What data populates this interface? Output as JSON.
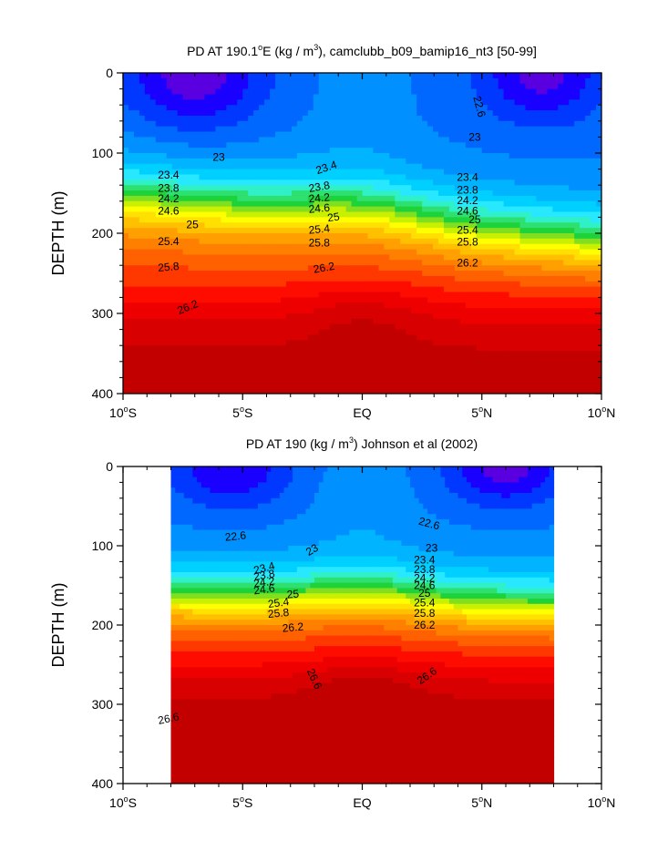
{
  "chart_data": [
    {
      "type": "contour",
      "title": "PD AT 190.1°E (kg / m³), camclubb_b09_bamip16_nt3 [50-99]",
      "title_parts": {
        "a": "PD AT 190.1",
        "deg": "o",
        "b": "E (kg / m",
        "sup": "3",
        "c": "), camclubb_b09_bamip16_nt3 [50-99]"
      },
      "xlabel": "",
      "ylabel": "DEPTH (m)",
      "xlim": [
        -10,
        10
      ],
      "ylim": [
        0,
        400
      ],
      "y_inverted": true,
      "data_xlim": [
        -10,
        10
      ],
      "x_ticks": [
        {
          "value": -10,
          "num": "10",
          "deg": "o",
          "hemi": "S"
        },
        {
          "value": -5,
          "num": "5",
          "deg": "o",
          "hemi": "S"
        },
        {
          "value": 0,
          "num": "EQ",
          "deg": "",
          "hemi": ""
        },
        {
          "value": 5,
          "num": "5",
          "deg": "o",
          "hemi": "N"
        },
        {
          "value": 10,
          "num": "10",
          "deg": "o",
          "hemi": "N"
        }
      ],
      "y_ticks": [
        "0",
        "100",
        "200",
        "300",
        "400"
      ],
      "fill_levels": [
        22.2,
        22.4,
        22.6,
        22.8,
        23.0,
        23.2,
        23.4,
        23.6,
        23.8,
        24.0,
        24.2,
        24.4,
        24.6,
        24.8,
        25.0,
        25.2,
        25.4,
        25.6,
        25.8,
        26.0,
        26.2,
        26.4,
        26.6
      ],
      "contour_labels": [
        {
          "text": "22.6",
          "x": 4.9,
          "y": 42,
          "rot": 75
        },
        {
          "text": "23",
          "x": -6.0,
          "y": 105,
          "rot": 0
        },
        {
          "text": "23",
          "x": 4.7,
          "y": 80,
          "rot": 0
        },
        {
          "text": "23.4",
          "x": -8.1,
          "y": 127,
          "rot": 0
        },
        {
          "text": "23.4",
          "x": -1.5,
          "y": 118,
          "rot": -18
        },
        {
          "text": "23.4",
          "x": 4.4,
          "y": 130,
          "rot": 0
        },
        {
          "text": "23.8",
          "x": -8.1,
          "y": 144,
          "rot": 0
        },
        {
          "text": "23.8",
          "x": -1.8,
          "y": 142,
          "rot": -10
        },
        {
          "text": "23.8",
          "x": 4.4,
          "y": 146,
          "rot": 0
        },
        {
          "text": "24.2",
          "x": -8.1,
          "y": 157,
          "rot": 0
        },
        {
          "text": "24.2",
          "x": -1.8,
          "y": 156,
          "rot": -5
        },
        {
          "text": "24.2",
          "x": 4.4,
          "y": 159,
          "rot": 0
        },
        {
          "text": "24.6",
          "x": -8.1,
          "y": 172,
          "rot": 0
        },
        {
          "text": "24.6",
          "x": -1.8,
          "y": 169,
          "rot": -5
        },
        {
          "text": "24.6",
          "x": 4.4,
          "y": 172,
          "rot": 0
        },
        {
          "text": "25",
          "x": -7.1,
          "y": 189,
          "rot": 0
        },
        {
          "text": "25",
          "x": -1.2,
          "y": 180,
          "rot": -8
        },
        {
          "text": "25",
          "x": 4.7,
          "y": 183,
          "rot": 0
        },
        {
          "text": "25.4",
          "x": -8.1,
          "y": 210,
          "rot": 0
        },
        {
          "text": "25.4",
          "x": -1.8,
          "y": 195,
          "rot": -5
        },
        {
          "text": "25.4",
          "x": 4.4,
          "y": 196,
          "rot": 0
        },
        {
          "text": "25.8",
          "x": -8.1,
          "y": 242,
          "rot": -5
        },
        {
          "text": "25.8",
          "x": -1.8,
          "y": 212,
          "rot": 0
        },
        {
          "text": "25.8",
          "x": 4.4,
          "y": 211,
          "rot": 0
        },
        {
          "text": "26.2",
          "x": -1.6,
          "y": 243,
          "rot": -10
        },
        {
          "text": "26.2",
          "x": 4.4,
          "y": 237,
          "rot": 0
        },
        {
          "text": "26.2",
          "x": -7.3,
          "y": 292,
          "rot": -22
        }
      ]
    },
    {
      "type": "contour",
      "title": "PD AT 190 (kg / m³) Johnson et al (2002)",
      "title_parts": {
        "a": "PD AT 190 (kg / m",
        "sup": "3",
        "c": ") Johnson et al (2002)"
      },
      "xlabel": "",
      "ylabel": "DEPTH (m)",
      "xlim": [
        -10,
        10
      ],
      "ylim": [
        0,
        400
      ],
      "y_inverted": true,
      "data_xlim": [
        -8,
        8
      ],
      "x_ticks": [
        {
          "value": -10,
          "num": "10",
          "deg": "o",
          "hemi": "S"
        },
        {
          "value": -5,
          "num": "5",
          "deg": "o",
          "hemi": "S"
        },
        {
          "value": 0,
          "num": "EQ",
          "deg": "",
          "hemi": ""
        },
        {
          "value": 5,
          "num": "5",
          "deg": "o",
          "hemi": "N"
        },
        {
          "value": 10,
          "num": "10",
          "deg": "o",
          "hemi": "N"
        }
      ],
      "y_ticks": [
        "0",
        "100",
        "200",
        "300",
        "400"
      ],
      "fill_levels": [
        22.2,
        22.4,
        22.6,
        22.8,
        23.0,
        23.2,
        23.4,
        23.6,
        23.8,
        24.0,
        24.2,
        24.4,
        24.6,
        24.8,
        25.0,
        25.2,
        25.4,
        25.6,
        25.8,
        26.0,
        26.2,
        26.4,
        26.6
      ],
      "contour_labels": [
        {
          "text": "22.6",
          "x": -5.3,
          "y": 88,
          "rot": -6
        },
        {
          "text": "22.6",
          "x": 2.8,
          "y": 72,
          "rot": 15
        },
        {
          "text": "23",
          "x": -2.1,
          "y": 105,
          "rot": -30
        },
        {
          "text": "23",
          "x": 2.9,
          "y": 103,
          "rot": 0
        },
        {
          "text": "23.4",
          "x": -4.1,
          "y": 128,
          "rot": -15
        },
        {
          "text": "23.4",
          "x": 2.6,
          "y": 118,
          "rot": 0
        },
        {
          "text": "23.8",
          "x": -4.1,
          "y": 137,
          "rot": -10
        },
        {
          "text": "23.8",
          "x": 2.6,
          "y": 130,
          "rot": 0
        },
        {
          "text": "24.2",
          "x": -4.1,
          "y": 146,
          "rot": -8
        },
        {
          "text": "24.2",
          "x": 2.6,
          "y": 141,
          "rot": 0
        },
        {
          "text": "24.6",
          "x": -4.1,
          "y": 155,
          "rot": -8
        },
        {
          "text": "24.6",
          "x": 2.6,
          "y": 150,
          "rot": 0
        },
        {
          "text": "25",
          "x": -2.9,
          "y": 161,
          "rot": -5
        },
        {
          "text": "25",
          "x": 2.6,
          "y": 160,
          "rot": 0
        },
        {
          "text": "25.4",
          "x": -3.5,
          "y": 172,
          "rot": -8
        },
        {
          "text": "25.4",
          "x": 2.6,
          "y": 172,
          "rot": 0
        },
        {
          "text": "25.8",
          "x": -3.5,
          "y": 185,
          "rot": -5
        },
        {
          "text": "25.8",
          "x": 2.6,
          "y": 185,
          "rot": 0
        },
        {
          "text": "26.2",
          "x": -2.9,
          "y": 203,
          "rot": -5
        },
        {
          "text": "26.2",
          "x": 2.6,
          "y": 200,
          "rot": 0
        },
        {
          "text": "26.6",
          "x": -2.0,
          "y": 268,
          "rot": 65
        },
        {
          "text": "26.6",
          "x": 2.7,
          "y": 264,
          "rot": -35
        },
        {
          "text": "26.6",
          "x": -8.1,
          "y": 318,
          "rot": -12
        }
      ]
    }
  ]
}
